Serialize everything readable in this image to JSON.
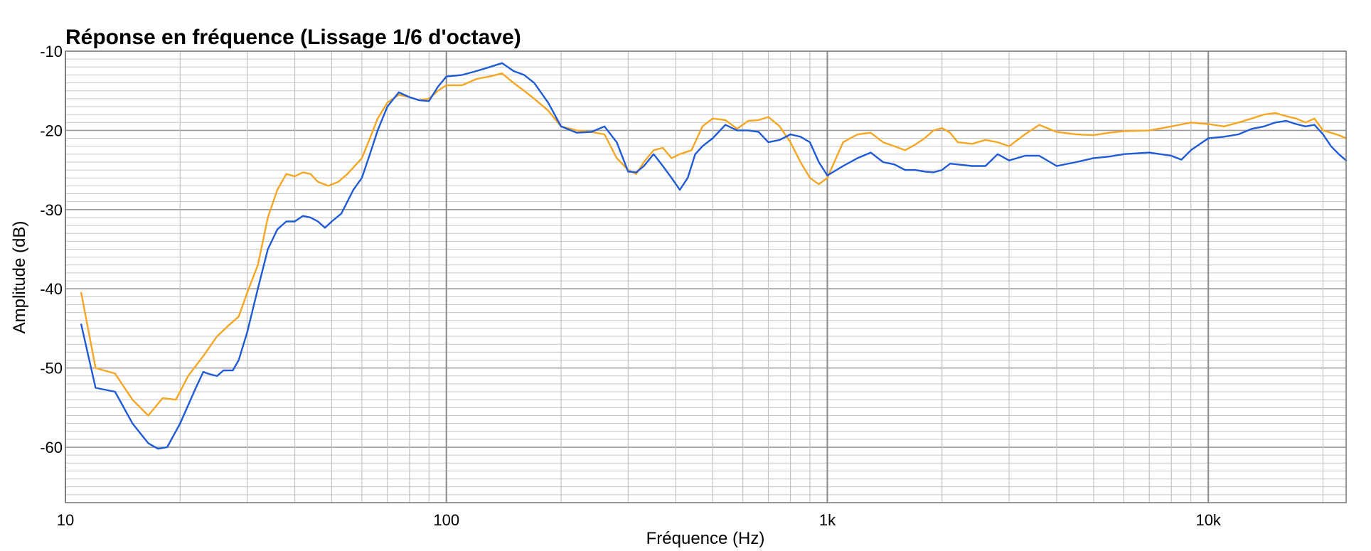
{
  "chart_data": {
    "type": "line",
    "title": "Réponse en fréquence (Lissage 1/6 d'octave)",
    "xlabel": "Fréquence (Hz)",
    "ylabel": "Amplitude (dB)",
    "x_scale": "log",
    "xlim": [
      10,
      23000
    ],
    "ylim": [
      -67,
      -10
    ],
    "x_ticks": [
      {
        "value": 10,
        "label": "10"
      },
      {
        "value": 100,
        "label": "100"
      },
      {
        "value": 1000,
        "label": "1k"
      },
      {
        "value": 10000,
        "label": "10k"
      }
    ],
    "y_ticks": [
      {
        "value": -10,
        "label": "-10"
      },
      {
        "value": -20,
        "label": "-20"
      },
      {
        "value": -30,
        "label": "-30"
      },
      {
        "value": -40,
        "label": "-40"
      },
      {
        "value": -50,
        "label": "-50"
      },
      {
        "value": -60,
        "label": "-60"
      }
    ],
    "grid": true,
    "legend": "none",
    "series": [
      {
        "color": "#f5a623",
        "points": [
          [
            11,
            -40.5
          ],
          [
            12,
            -50
          ],
          [
            13.5,
            -50.7
          ],
          [
            15,
            -54
          ],
          [
            16.5,
            -56
          ],
          [
            18,
            -53.8
          ],
          [
            19.5,
            -54
          ],
          [
            21,
            -51
          ],
          [
            23,
            -48.5
          ],
          [
            25,
            -46
          ],
          [
            27,
            -44.5
          ],
          [
            28.5,
            -43.5
          ],
          [
            30,
            -40.5
          ],
          [
            32,
            -37
          ],
          [
            34,
            -31
          ],
          [
            36,
            -27.5
          ],
          [
            38,
            -25.5
          ],
          [
            40,
            -25.8
          ],
          [
            42,
            -25.3
          ],
          [
            44,
            -25.5
          ],
          [
            46,
            -26.5
          ],
          [
            49,
            -27
          ],
          [
            52,
            -26.5
          ],
          [
            55,
            -25.5
          ],
          [
            60,
            -23.5
          ],
          [
            63,
            -21
          ],
          [
            66,
            -18.5
          ],
          [
            70,
            -16.5
          ],
          [
            75,
            -15.5
          ],
          [
            80,
            -15.8
          ],
          [
            85,
            -16.2
          ],
          [
            90,
            -16
          ],
          [
            95,
            -15
          ],
          [
            100,
            -14.3
          ],
          [
            110,
            -14.3
          ],
          [
            120,
            -13.5
          ],
          [
            130,
            -13.2
          ],
          [
            140,
            -12.8
          ],
          [
            150,
            -14
          ],
          [
            160,
            -15
          ],
          [
            170,
            -16
          ],
          [
            185,
            -17.5
          ],
          [
            200,
            -19.5
          ],
          [
            220,
            -20
          ],
          [
            240,
            -20.2
          ],
          [
            260,
            -20.5
          ],
          [
            280,
            -23.5
          ],
          [
            300,
            -25
          ],
          [
            315,
            -25.5
          ],
          [
            330,
            -24
          ],
          [
            350,
            -22.5
          ],
          [
            370,
            -22.2
          ],
          [
            390,
            -23.5
          ],
          [
            410,
            -23
          ],
          [
            440,
            -22.5
          ],
          [
            470,
            -19.5
          ],
          [
            500,
            -18.5
          ],
          [
            540,
            -18.7
          ],
          [
            580,
            -19.8
          ],
          [
            620,
            -18.8
          ],
          [
            660,
            -18.7
          ],
          [
            700,
            -18.3
          ],
          [
            750,
            -19.5
          ],
          [
            800,
            -21.5
          ],
          [
            850,
            -24
          ],
          [
            900,
            -26
          ],
          [
            950,
            -26.8
          ],
          [
            1000,
            -26
          ],
          [
            1100,
            -21.5
          ],
          [
            1200,
            -20.5
          ],
          [
            1300,
            -20.3
          ],
          [
            1400,
            -21.5
          ],
          [
            1500,
            -22
          ],
          [
            1600,
            -22.5
          ],
          [
            1700,
            -21.8
          ],
          [
            1800,
            -21
          ],
          [
            1900,
            -20
          ],
          [
            2000,
            -19.7
          ],
          [
            2100,
            -20.3
          ],
          [
            2200,
            -21.5
          ],
          [
            2400,
            -21.7
          ],
          [
            2600,
            -21.2
          ],
          [
            2800,
            -21.5
          ],
          [
            3000,
            -22
          ],
          [
            3300,
            -20.5
          ],
          [
            3600,
            -19.3
          ],
          [
            4000,
            -20.2
          ],
          [
            4500,
            -20.5
          ],
          [
            5000,
            -20.6
          ],
          [
            5500,
            -20.3
          ],
          [
            6000,
            -20.1
          ],
          [
            7000,
            -20
          ],
          [
            8000,
            -19.5
          ],
          [
            9000,
            -19
          ],
          [
            10000,
            -19.2
          ],
          [
            11000,
            -19.5
          ],
          [
            12000,
            -19
          ],
          [
            13000,
            -18.5
          ],
          [
            14000,
            -18
          ],
          [
            15000,
            -17.8
          ],
          [
            16000,
            -18.2
          ],
          [
            17000,
            -18.5
          ],
          [
            18000,
            -19
          ],
          [
            19000,
            -18.5
          ],
          [
            20000,
            -20
          ],
          [
            21000,
            -20.3
          ],
          [
            22000,
            -20.6
          ],
          [
            23000,
            -21
          ]
        ]
      },
      {
        "color": "#1f5bd6",
        "points": [
          [
            11,
            -44.5
          ],
          [
            12,
            -52.5
          ],
          [
            13.5,
            -53
          ],
          [
            15,
            -57
          ],
          [
            16.5,
            -59.5
          ],
          [
            17.5,
            -60.2
          ],
          [
            18.5,
            -60
          ],
          [
            20,
            -57
          ],
          [
            22,
            -52.5
          ],
          [
            23,
            -50.5
          ],
          [
            24,
            -50.8
          ],
          [
            25,
            -51
          ],
          [
            26,
            -50.3
          ],
          [
            27.5,
            -50.3
          ],
          [
            28.5,
            -49
          ],
          [
            30,
            -45.5
          ],
          [
            32,
            -40
          ],
          [
            34,
            -35
          ],
          [
            36,
            -32.5
          ],
          [
            38,
            -31.5
          ],
          [
            40,
            -31.5
          ],
          [
            42,
            -30.8
          ],
          [
            44,
            -31
          ],
          [
            46,
            -31.5
          ],
          [
            48,
            -32.3
          ],
          [
            50,
            -31.5
          ],
          [
            53,
            -30.5
          ],
          [
            57,
            -27.5
          ],
          [
            60,
            -26
          ],
          [
            63,
            -23
          ],
          [
            66,
            -20
          ],
          [
            70,
            -17
          ],
          [
            75,
            -15.2
          ],
          [
            80,
            -15.8
          ],
          [
            85,
            -16.2
          ],
          [
            90,
            -16.3
          ],
          [
            95,
            -14.5
          ],
          [
            100,
            -13.2
          ],
          [
            110,
            -13
          ],
          [
            120,
            -12.5
          ],
          [
            130,
            -12
          ],
          [
            140,
            -11.5
          ],
          [
            150,
            -12.5
          ],
          [
            160,
            -13
          ],
          [
            170,
            -14
          ],
          [
            185,
            -16.5
          ],
          [
            200,
            -19.5
          ],
          [
            220,
            -20.3
          ],
          [
            240,
            -20.2
          ],
          [
            260,
            -19.5
          ],
          [
            280,
            -21.5
          ],
          [
            300,
            -25.2
          ],
          [
            315,
            -25.3
          ],
          [
            330,
            -24.5
          ],
          [
            350,
            -23
          ],
          [
            370,
            -24.5
          ],
          [
            390,
            -26
          ],
          [
            410,
            -27.5
          ],
          [
            430,
            -26
          ],
          [
            450,
            -23
          ],
          [
            470,
            -22
          ],
          [
            500,
            -21
          ],
          [
            540,
            -19.3
          ],
          [
            580,
            -20
          ],
          [
            620,
            -20
          ],
          [
            660,
            -20.2
          ],
          [
            700,
            -21.5
          ],
          [
            750,
            -21.2
          ],
          [
            800,
            -20.5
          ],
          [
            850,
            -20.8
          ],
          [
            900,
            -21.5
          ],
          [
            950,
            -24
          ],
          [
            1000,
            -25.7
          ],
          [
            1100,
            -24.5
          ],
          [
            1200,
            -23.5
          ],
          [
            1300,
            -22.8
          ],
          [
            1400,
            -24
          ],
          [
            1500,
            -24.3
          ],
          [
            1600,
            -25
          ],
          [
            1700,
            -25
          ],
          [
            1800,
            -25.2
          ],
          [
            1900,
            -25.3
          ],
          [
            2000,
            -25
          ],
          [
            2100,
            -24.2
          ],
          [
            2200,
            -24.3
          ],
          [
            2400,
            -24.5
          ],
          [
            2600,
            -24.5
          ],
          [
            2800,
            -23
          ],
          [
            3000,
            -23.8
          ],
          [
            3300,
            -23.2
          ],
          [
            3600,
            -23.2
          ],
          [
            4000,
            -24.5
          ],
          [
            4500,
            -24
          ],
          [
            5000,
            -23.5
          ],
          [
            5500,
            -23.3
          ],
          [
            6000,
            -23
          ],
          [
            7000,
            -22.8
          ],
          [
            8000,
            -23.2
          ],
          [
            8500,
            -23.7
          ],
          [
            9000,
            -22.5
          ],
          [
            10000,
            -21
          ],
          [
            11000,
            -20.8
          ],
          [
            12000,
            -20.5
          ],
          [
            13000,
            -19.8
          ],
          [
            14000,
            -19.5
          ],
          [
            15000,
            -19
          ],
          [
            16000,
            -18.8
          ],
          [
            17000,
            -19.2
          ],
          [
            18000,
            -19.5
          ],
          [
            19000,
            -19.3
          ],
          [
            20000,
            -20.5
          ],
          [
            21000,
            -22
          ],
          [
            22000,
            -23
          ],
          [
            23000,
            -23.8
          ]
        ]
      }
    ]
  }
}
